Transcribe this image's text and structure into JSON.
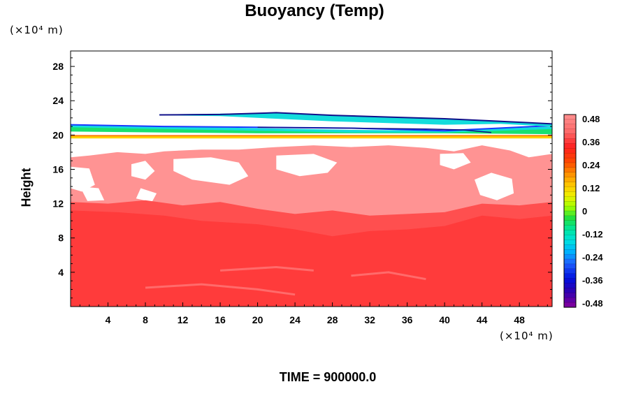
{
  "chart_data": {
    "type": "heatmap",
    "title": "Buoyancy (Temp)",
    "ylabel": "Height",
    "xlabel": "",
    "x_unit_label": "(×10⁴ m)",
    "y_unit_label": "(×10⁴ m)",
    "x_ticks": [
      4,
      8,
      12,
      16,
      20,
      24,
      28,
      32,
      36,
      40,
      44,
      48
    ],
    "y_ticks": [
      4,
      8,
      12,
      16,
      20,
      24,
      28
    ],
    "xlim": [
      0,
      51.5
    ],
    "ylim": [
      0,
      29.8
    ],
    "colorbar": {
      "min": -0.48,
      "max": 0.48,
      "labels": [
        "0.48",
        "0.36",
        "0.24",
        "0.12",
        "0",
        "-0.12",
        "-0.24",
        "-0.36",
        "-0.48"
      ]
    },
    "colors": {
      "strong_positive": "#ff3b3b",
      "medium_positive": "#ff4f4f",
      "light_positive": "#ff9393",
      "layer_yellow": "#ffd200",
      "layer_green": "#19e070",
      "layer_cyan": "#14dcdc",
      "layer_blue": "#1838ff",
      "layer_navy": "#10108a"
    },
    "footer": "TIME = 900000.0"
  }
}
